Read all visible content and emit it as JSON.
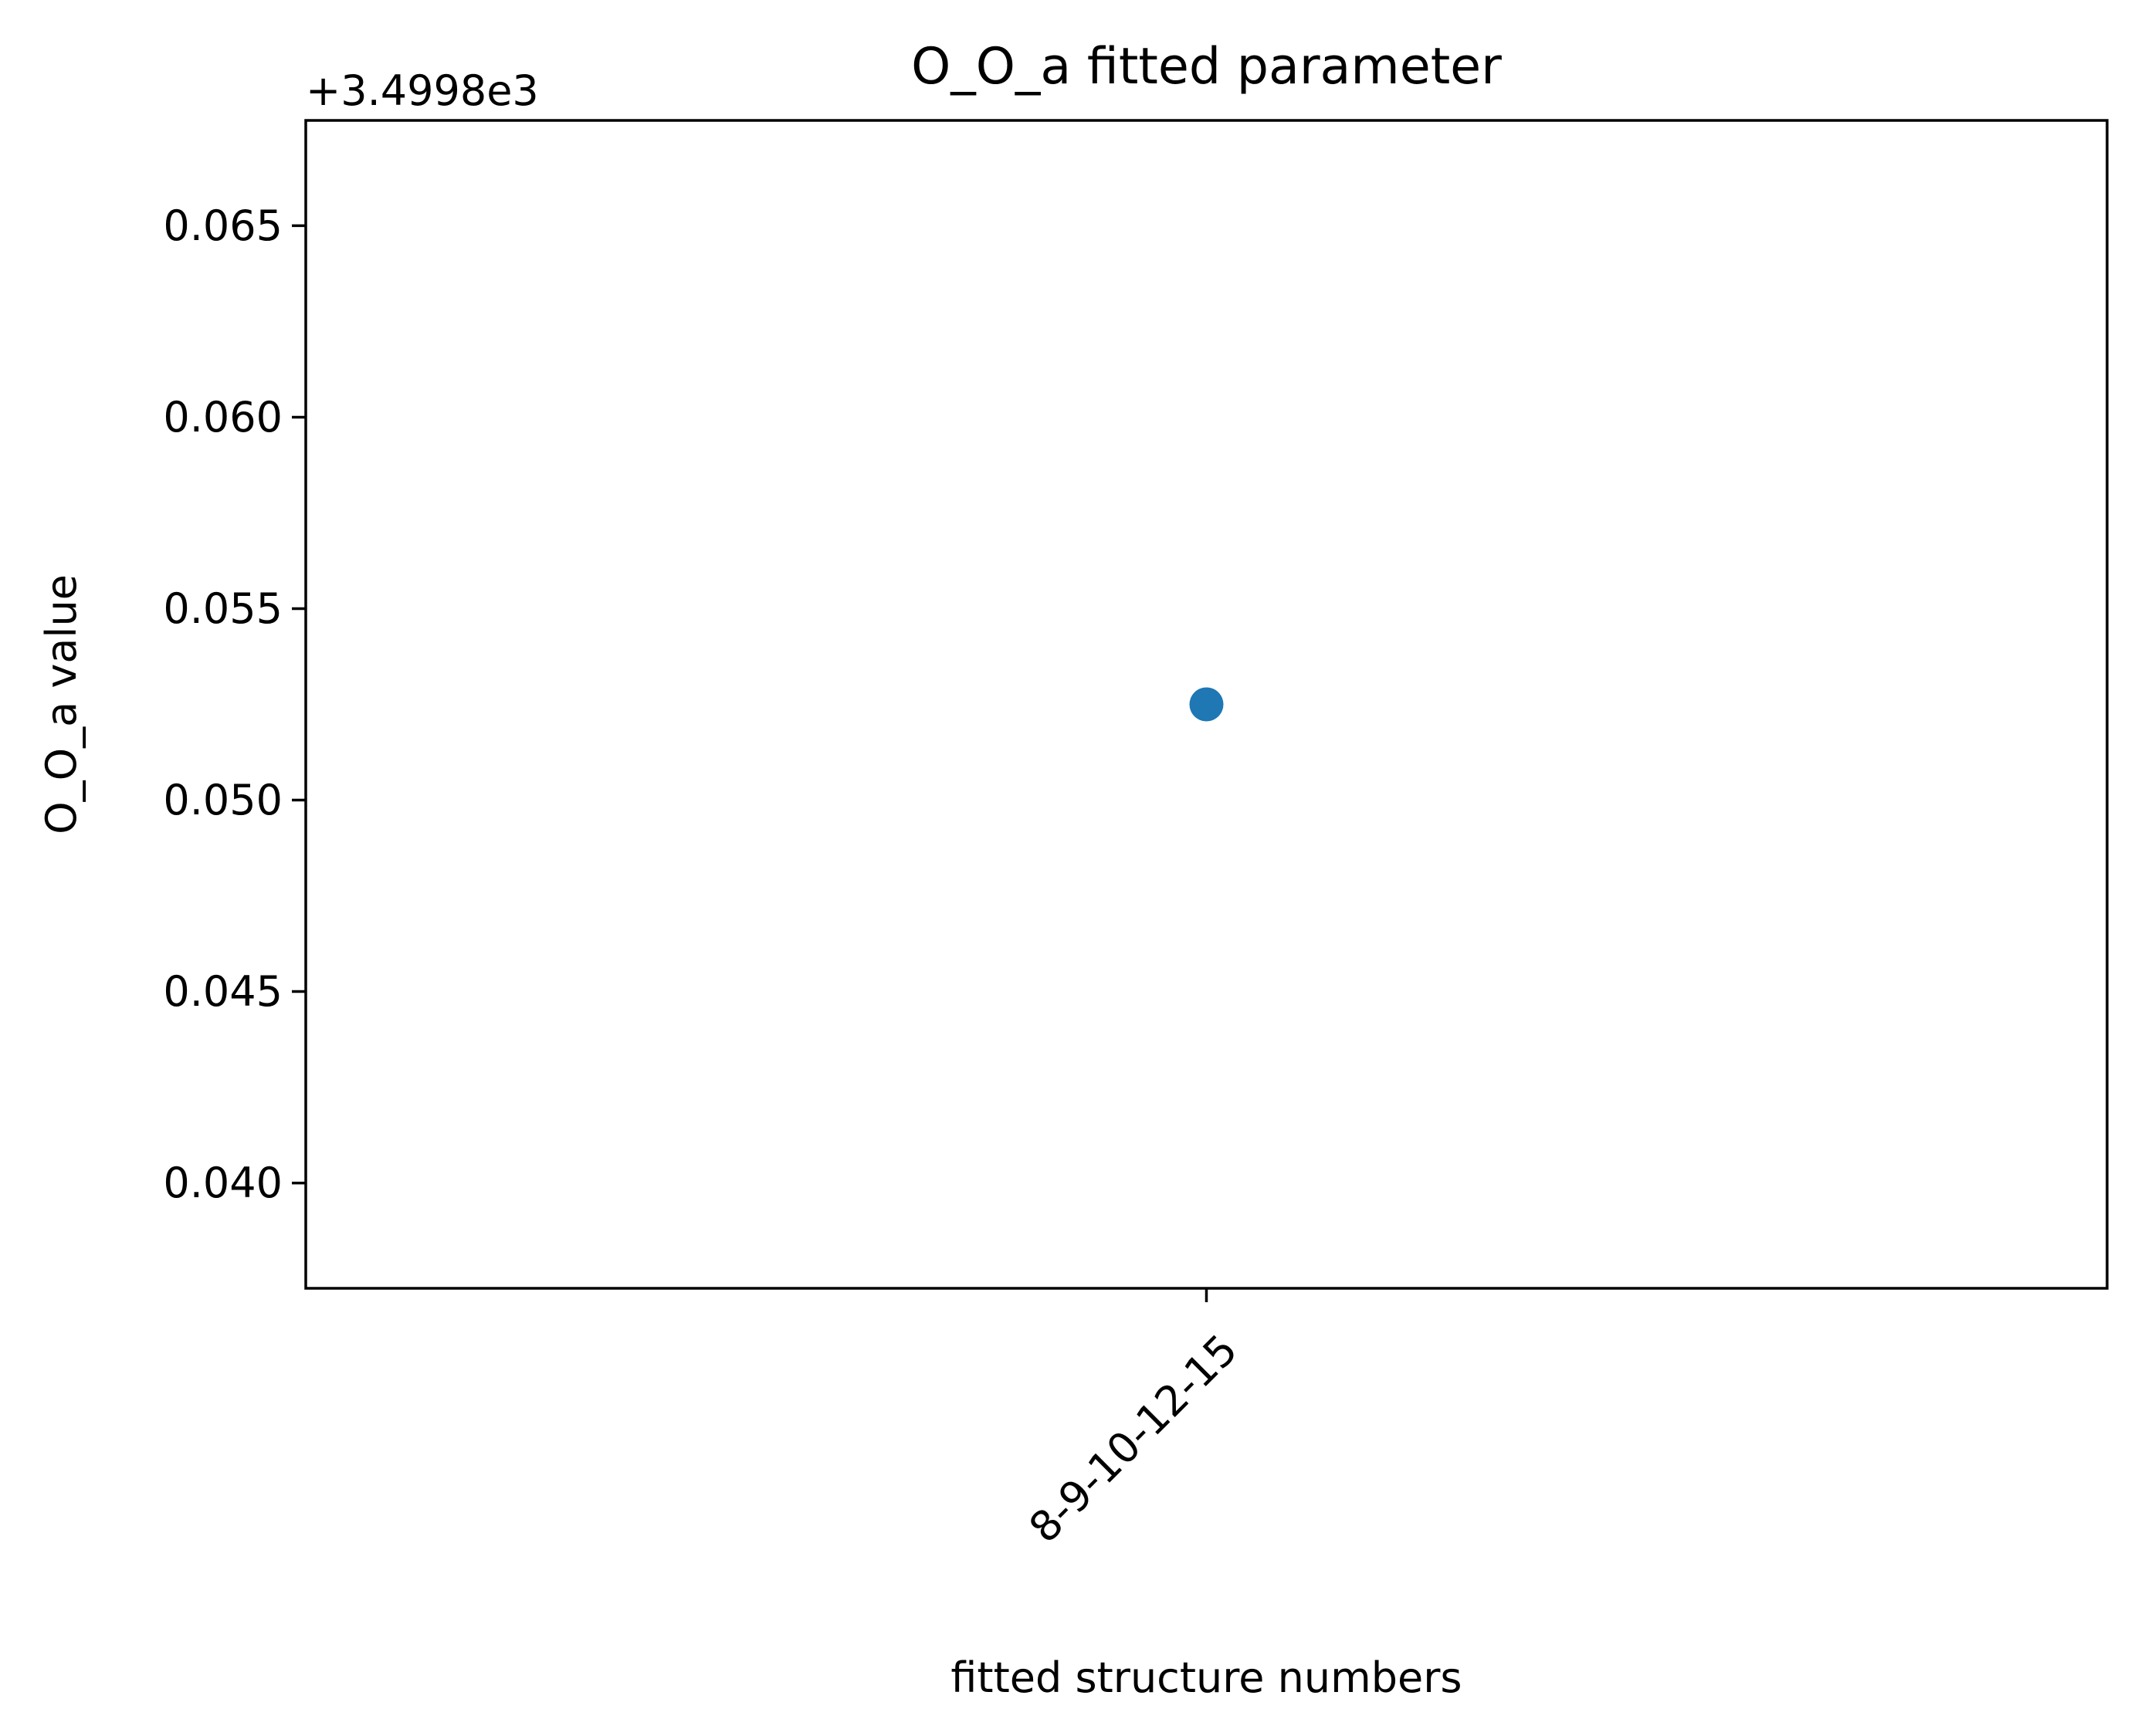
{
  "chart_data": {
    "type": "scatter",
    "title": "O_O_a fitted parameter",
    "xlabel": "fitted structure numbers",
    "ylabel": "O_O_a value",
    "y_offset_label": "+3.4998e3",
    "categories": [
      "8-9-10-12-15"
    ],
    "series": [
      {
        "values": [
          0.0525
        ],
        "color": "#1f77b4"
      }
    ],
    "y_ticks": [
      0.04,
      0.045,
      0.05,
      0.055,
      0.06,
      0.065
    ],
    "y_tick_labels": [
      "0.040",
      "0.045",
      "0.050",
      "0.055",
      "0.060",
      "0.065"
    ],
    "ylim": [
      0.03725,
      0.06775
    ],
    "grid": false,
    "legend": "none",
    "x_tick_rotation_deg": -45
  }
}
